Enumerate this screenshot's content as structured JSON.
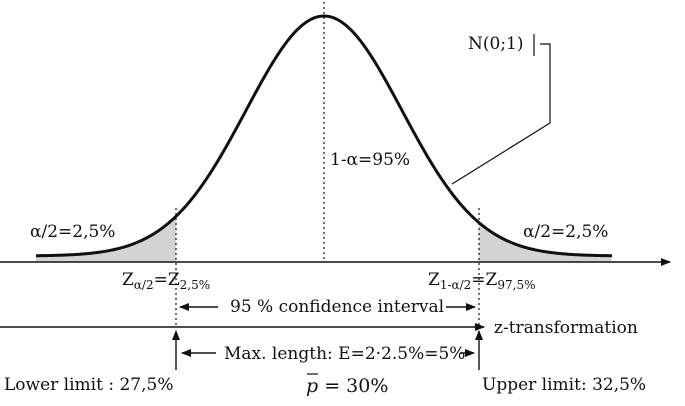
{
  "labels": {
    "distribution": "N(0;1)",
    "center_area": "1-α=95%",
    "left_tail": "α/2=2,5%",
    "right_tail": "α/2=2,5%",
    "z_left_main": "Z",
    "z_left_sub": "α/2",
    "z_left_eq": "=Z",
    "z_left_sub2": "2,5%",
    "z_right_main": "Z",
    "z_right_sub": "1-α/2",
    "z_right_eq": "=Z",
    "z_right_sub2": "97,5%",
    "confidence_interval": "95 % confidence interval",
    "z_transformation": "z-transformation",
    "max_length": "Max. length: E=2·2.5%=5%",
    "lower_limit": "Lower limit : 27,5%",
    "upper_limit": "Upper limit: 32,5%",
    "p_symbol": "p",
    "p_value": " = 30%"
  },
  "colors": {
    "curve": "#111111",
    "tail_fill": "#d4d4d4",
    "line": "#111111"
  }
}
